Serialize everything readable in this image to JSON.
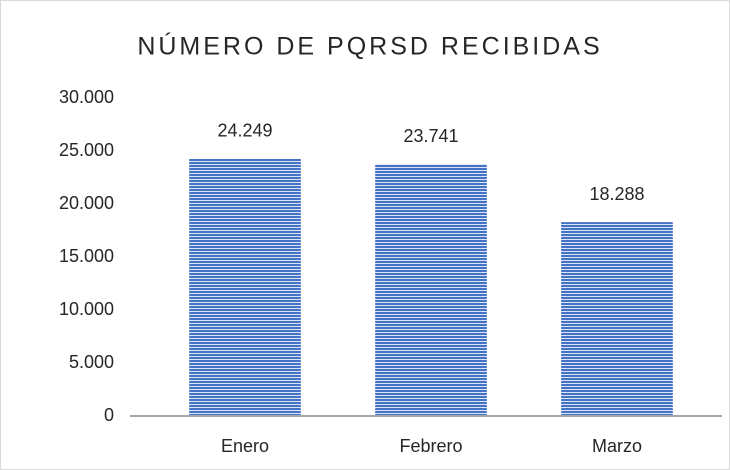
{
  "chart_data": {
    "type": "bar",
    "title": "NÚMERO DE PQRSD RECIBIDAS",
    "categories": [
      "Enero",
      "Febrero",
      "Marzo"
    ],
    "values": [
      24249,
      23741,
      18288
    ],
    "value_labels": [
      "24.249",
      "23.741",
      "18.288"
    ],
    "color": "#4472c4",
    "ylim": [
      0,
      30000
    ],
    "yticks": [
      0,
      {
        "value": 5000,
        "label": "5.000"
      },
      {
        "value": 10000,
        "label": "10.000"
      },
      {
        "value": 15000,
        "label": "15.000"
      },
      {
        "value": 20000,
        "label": "20.000"
      },
      {
        "value": 25000,
        "label": "25.000"
      },
      {
        "value": 30000,
        "label": "30.000"
      }
    ],
    "grid": false
  }
}
